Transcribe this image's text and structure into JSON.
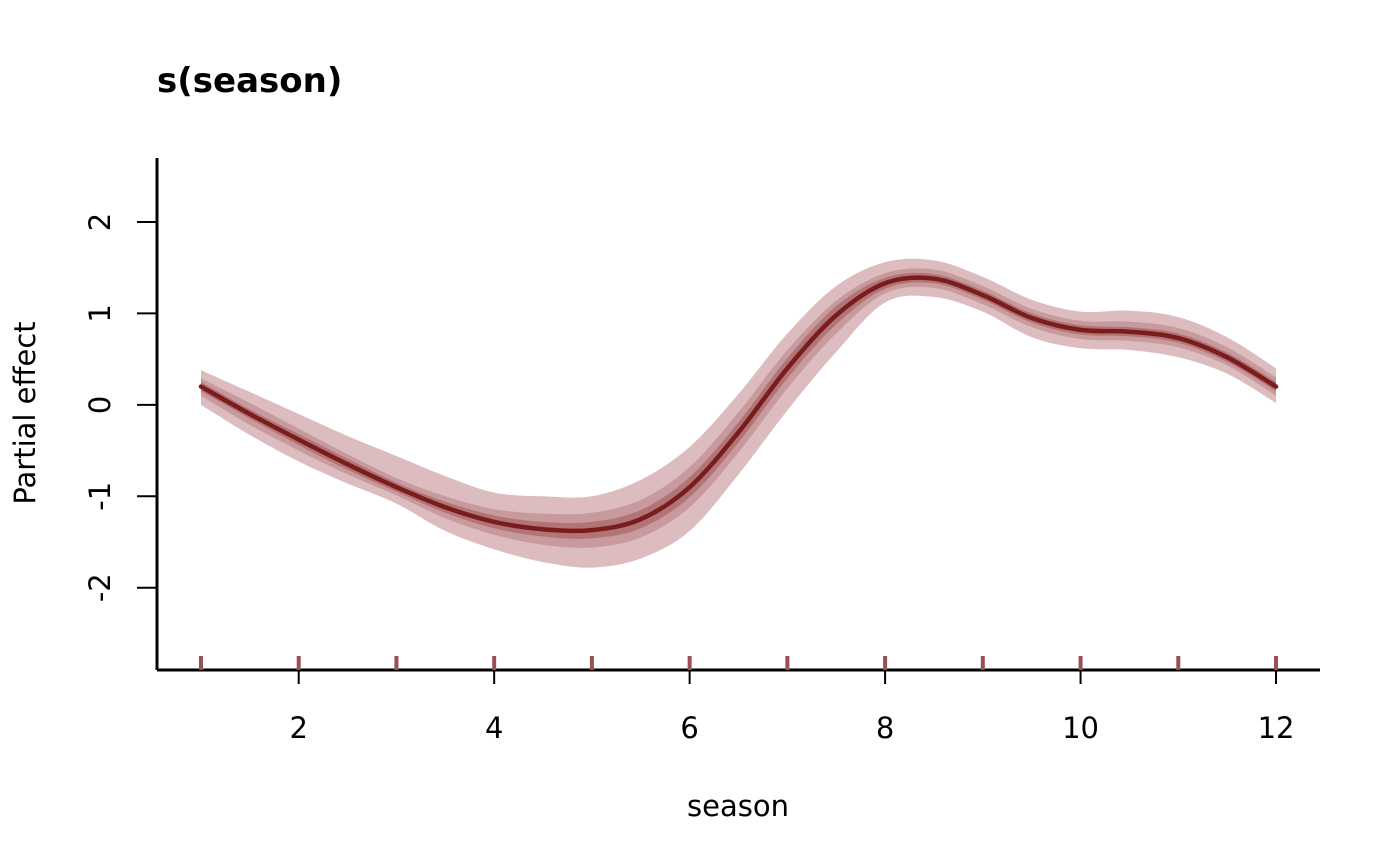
{
  "chart_data": {
    "type": "line",
    "title": "s(season)",
    "xlabel": "season",
    "ylabel": "Partial effect",
    "xlim": [
      0.55,
      12.45
    ],
    "ylim": [
      -2.9,
      2.7
    ],
    "x_ticks": [
      2,
      4,
      6,
      8,
      10,
      12
    ],
    "y_ticks": [
      -2,
      -1,
      0,
      1,
      2
    ],
    "y_tick_labels": [
      "-2",
      "-1",
      "0",
      "1",
      "2"
    ],
    "rug": [
      1,
      2,
      3,
      4,
      5,
      6,
      7,
      8,
      9,
      10,
      11,
      12
    ],
    "grid": false,
    "colors": {
      "line": "#7a1c1c",
      "band_outer": "#dcbcbf",
      "band_mid": "#c99a9d",
      "band_inner": "#b17477",
      "rug": "#9a5050",
      "axis": "#000000"
    },
    "series": [
      {
        "x": [
          1,
          1.5,
          2,
          2.5,
          3,
          3.5,
          4,
          4.5,
          5,
          5.5,
          6,
          6.5,
          7,
          7.5,
          8,
          8.5,
          9,
          9.5,
          10,
          10.5,
          11,
          11.5,
          12
        ],
        "y": [
          0.2,
          -0.1,
          -0.38,
          -0.65,
          -0.9,
          -1.12,
          -1.28,
          -1.36,
          -1.37,
          -1.25,
          -0.9,
          -0.3,
          0.4,
          0.98,
          1.33,
          1.38,
          1.2,
          0.95,
          0.82,
          0.8,
          0.73,
          0.52,
          0.2
        ],
        "lower_outer": [
          0.0,
          -0.33,
          -0.62,
          -0.86,
          -1.08,
          -1.38,
          -1.58,
          -1.72,
          -1.78,
          -1.68,
          -1.38,
          -0.76,
          -0.06,
          0.58,
          1.12,
          1.18,
          1.02,
          0.74,
          0.62,
          0.6,
          0.52,
          0.34,
          0.02
        ],
        "upper_outer": [
          0.38,
          0.14,
          -0.1,
          -0.34,
          -0.56,
          -0.78,
          -0.96,
          -1.0,
          -1.0,
          -0.82,
          -0.46,
          0.12,
          0.78,
          1.3,
          1.56,
          1.58,
          1.4,
          1.15,
          1.02,
          1.03,
          0.96,
          0.74,
          0.4
        ],
        "lower_mid": [
          0.1,
          -0.22,
          -0.5,
          -0.76,
          -0.99,
          -1.24,
          -1.42,
          -1.53,
          -1.56,
          -1.45,
          -1.12,
          -0.52,
          0.18,
          0.78,
          1.22,
          1.28,
          1.1,
          0.85,
          0.72,
          0.7,
          0.63,
          0.43,
          0.1
        ],
        "upper_mid": [
          0.29,
          0.02,
          -0.26,
          -0.54,
          -0.8,
          -1.0,
          -1.14,
          -1.19,
          -1.18,
          -1.04,
          -0.68,
          -0.08,
          0.6,
          1.14,
          1.44,
          1.48,
          1.3,
          1.05,
          0.92,
          0.91,
          0.84,
          0.63,
          0.3
        ],
        "lower_inner": [
          0.15,
          -0.15,
          -0.44,
          -0.71,
          -0.95,
          -1.18,
          -1.35,
          -1.44,
          -1.46,
          -1.35,
          -1.01,
          -0.41,
          0.29,
          0.88,
          1.27,
          1.33,
          1.15,
          0.9,
          0.77,
          0.75,
          0.68,
          0.47,
          0.15
        ],
        "upper_inner": [
          0.25,
          -0.05,
          -0.32,
          -0.59,
          -0.85,
          -1.06,
          -1.21,
          -1.28,
          -1.28,
          -1.15,
          -0.79,
          -0.19,
          0.51,
          1.08,
          1.39,
          1.43,
          1.25,
          1.0,
          0.87,
          0.85,
          0.78,
          0.57,
          0.25
        ]
      }
    ]
  }
}
